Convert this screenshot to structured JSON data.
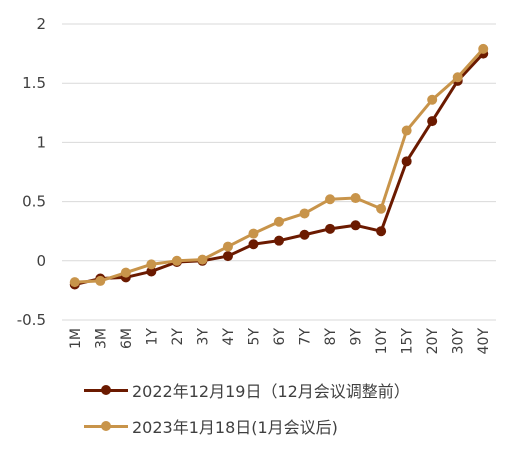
{
  "chart_data": {
    "type": "line",
    "categories": [
      "1M",
      "3M",
      "6M",
      "1Y",
      "2Y",
      "3Y",
      "4Y",
      "5Y",
      "6Y",
      "7Y",
      "8Y",
      "9Y",
      "10Y",
      "15Y",
      "20Y",
      "30Y",
      "40Y"
    ],
    "series": [
      {
        "name": "2022年12月19日（12月会议调整前）",
        "color": "#6b1a00",
        "values": [
          -0.2,
          -0.15,
          -0.14,
          -0.09,
          -0.01,
          0.0,
          0.04,
          0.14,
          0.17,
          0.22,
          0.27,
          0.3,
          0.25,
          0.84,
          1.18,
          1.52,
          1.75
        ]
      },
      {
        "name": "2023年1月18日(1月会议后)",
        "color": "#c8944a",
        "values": [
          -0.18,
          -0.17,
          -0.1,
          -0.03,
          0.0,
          0.01,
          0.12,
          0.23,
          0.33,
          0.4,
          0.52,
          0.53,
          0.44,
          1.1,
          1.36,
          1.55,
          1.79
        ]
      }
    ],
    "ylim": [
      -0.5,
      2
    ],
    "yticks": [
      "-0.5",
      "0",
      "0.5",
      "1",
      "1.5",
      "2"
    ],
    "ytick_values": [
      -0.5,
      0,
      0.5,
      1,
      1.5,
      2
    ],
    "grid": true,
    "legend_position": "bottom"
  }
}
